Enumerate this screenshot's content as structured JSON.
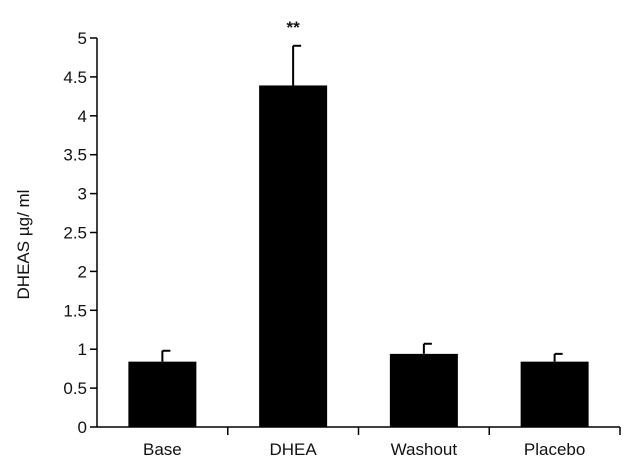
{
  "chart_data": {
    "type": "bar",
    "categories": [
      "Base",
      "DHEA",
      "Washout",
      "Placebo"
    ],
    "values": [
      0.84,
      4.39,
      0.94,
      0.84
    ],
    "errors": [
      0.14,
      0.51,
      0.13,
      0.1
    ],
    "annotations": [
      {
        "category": "DHEA",
        "text": "**"
      }
    ],
    "ylabel": "DHEAS µg/ ml",
    "xlabel": "",
    "ylim": [
      0,
      5
    ],
    "yticks": [
      "0",
      "0.5",
      "1",
      "1.5",
      "2",
      "2.5",
      "3",
      "3.5",
      "4",
      "4.5",
      "5"
    ],
    "grid": false,
    "bar_color": "#000000"
  }
}
